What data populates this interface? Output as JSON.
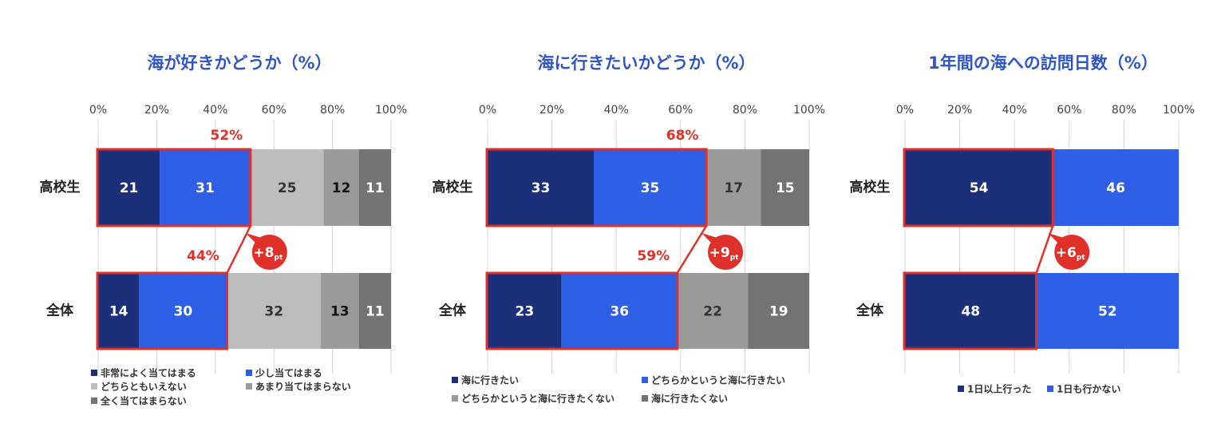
{
  "chart_data": [
    {
      "type": "bar",
      "orientation": "horizontal",
      "stacked": true,
      "title": "海が好きかどうか（%）",
      "xlim": [
        0,
        100
      ],
      "ticks": [
        "0%",
        "20%",
        "40%",
        "60%",
        "80%",
        "100%"
      ],
      "categories": [
        "高校生",
        "全体"
      ],
      "series": [
        {
          "name": "非常によく当てはまる",
          "values": [
            21,
            14
          ],
          "color": "#1b2f7a",
          "text_color": "#ffffff"
        },
        {
          "name": "少し当てはまる",
          "values": [
            31,
            30
          ],
          "color": "#2f5fe6",
          "text_color": "#ffffff"
        },
        {
          "name": "どちらともいえない",
          "values": [
            25,
            32
          ],
          "color": "#bdbdbd",
          "text_color": "#333333"
        },
        {
          "name": "あまり当てはまらない",
          "values": [
            12,
            13
          ],
          "color": "#9a9a9a",
          "text_color": "#111111"
        },
        {
          "name": "全く当てはまらない",
          "values": [
            11,
            11
          ],
          "color": "#737373",
          "text_color": "#ffffff"
        }
      ],
      "highlight_totals": [
        "52%",
        "44%"
      ],
      "difference": "+8",
      "difference_unit": "pt"
    },
    {
      "type": "bar",
      "orientation": "horizontal",
      "stacked": true,
      "title": "海に行きたいかどうか（%）",
      "xlim": [
        0,
        100
      ],
      "ticks": [
        "0%",
        "20%",
        "40%",
        "60%",
        "80%",
        "100%"
      ],
      "categories": [
        "高校生",
        "全体"
      ],
      "series": [
        {
          "name": "海に行きたい",
          "values": [
            33,
            23
          ],
          "color": "#1b2f7a",
          "text_color": "#ffffff"
        },
        {
          "name": "どちらかというと海に行きたい",
          "values": [
            35,
            36
          ],
          "color": "#2f5fe6",
          "text_color": "#ffffff"
        },
        {
          "name": "どちらかというと海に行きたくない",
          "values": [
            17,
            22
          ],
          "color": "#9a9a9a",
          "text_color": "#333333"
        },
        {
          "name": "海に行きたくない",
          "values": [
            15,
            19
          ],
          "color": "#737373",
          "text_color": "#ffffff"
        }
      ],
      "highlight_totals": [
        "68%",
        "59%"
      ],
      "difference": "+9",
      "difference_unit": "pt"
    },
    {
      "type": "bar",
      "orientation": "horizontal",
      "stacked": true,
      "title": "1年間の海への訪問日数（%）",
      "xlim": [
        0,
        100
      ],
      "ticks": [
        "0%",
        "20%",
        "40%",
        "60%",
        "80%",
        "100%"
      ],
      "categories": [
        "高校生",
        "全体"
      ],
      "series": [
        {
          "name": "1日以上行った",
          "values": [
            54,
            48
          ],
          "color": "#1b2f7a",
          "text_color": "#ffffff"
        },
        {
          "name": "1日も行かない",
          "values": [
            46,
            52
          ],
          "color": "#2f5fe6",
          "text_color": "#ffffff"
        }
      ],
      "highlight_totals": [],
      "difference": "+6",
      "difference_unit": "pt"
    }
  ]
}
